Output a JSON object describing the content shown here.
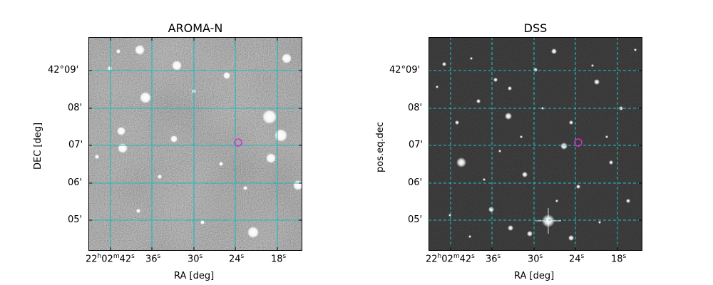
{
  "panels": [
    {
      "id": "aroma",
      "title": "AROMA-N",
      "xlabel": "RA [deg]",
      "ylabel": "DEC [deg]",
      "background": "#6f6f6f",
      "grid_color": "#22b8b8",
      "grid_style": "solid",
      "marker_color": "#cc33cc",
      "x_ticks": [
        {
          "pre": "22",
          "h": "h",
          "mid": "02",
          "m": "m",
          "post": "42",
          "s": "s"
        },
        {
          "pre": "",
          "h": "",
          "mid": "",
          "m": "",
          "post": "36",
          "s": "s"
        },
        {
          "pre": "",
          "h": "",
          "mid": "",
          "m": "",
          "post": "30",
          "s": "s"
        },
        {
          "pre": "",
          "h": "",
          "mid": "",
          "m": "",
          "post": "24",
          "s": "s"
        },
        {
          "pre": "",
          "h": "",
          "mid": "",
          "m": "",
          "post": "18",
          "s": "s"
        }
      ],
      "y_ticks": [
        "42°09'",
        "08'",
        "07'",
        "06'",
        "05'"
      ]
    },
    {
      "id": "dss",
      "title": "DSS",
      "xlabel": "RA [deg]",
      "ylabel": "pos.eq.dec",
      "background": "#1f1f1f",
      "grid_color": "#22c4c4",
      "grid_style": "dashed",
      "marker_color": "#cc33cc",
      "x_ticks": [
        {
          "pre": "22",
          "h": "h",
          "mid": "02",
          "m": "m",
          "post": "42",
          "s": "s"
        },
        {
          "pre": "",
          "h": "",
          "mid": "",
          "m": "",
          "post": "36",
          "s": "s"
        },
        {
          "pre": "",
          "h": "",
          "mid": "",
          "m": "",
          "post": "30",
          "s": "s"
        },
        {
          "pre": "",
          "h": "",
          "mid": "",
          "m": "",
          "post": "24",
          "s": "s"
        },
        {
          "pre": "",
          "h": "",
          "mid": "",
          "m": "",
          "post": "18",
          "s": "s"
        }
      ],
      "y_ticks": [
        "42°09'",
        "08'",
        "07'",
        "06'",
        "05'"
      ]
    }
  ]
}
